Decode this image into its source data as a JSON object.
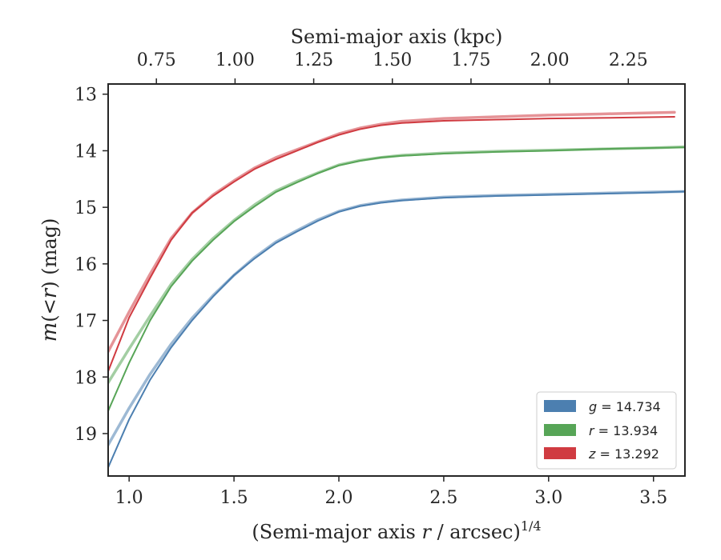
{
  "chart_data": {
    "type": "line",
    "xlabel_prefix": "(Semi-major axis ",
    "xlabel_var": "r",
    "xlabel_suffix": " / arcsec)",
    "xlabel_sup": "1/4",
    "ylabel_var": "m",
    "ylabel_mid": "(<",
    "ylabel_var2": "r",
    "ylabel_suffix": ") (mag)",
    "top_axis_label": "Semi-major axis (kpc)",
    "xlim": [
      0.9,
      3.65
    ],
    "ylim": [
      19.75,
      12.82
    ],
    "y_inverted": true,
    "x_ticks": [
      "1.0",
      "1.5",
      "2.0",
      "2.5",
      "3.0",
      "3.5"
    ],
    "y_ticks": [
      "13",
      "14",
      "15",
      "16",
      "17",
      "18",
      "19"
    ],
    "top_ticks": [
      "0.75",
      "1.00",
      "1.25",
      "1.50",
      "1.75",
      "2.00",
      "2.25"
    ],
    "legend_position": "lower right",
    "colors": {
      "g": "#4c7fb0",
      "r": "#57a557",
      "z": "#d03b41"
    },
    "series": [
      {
        "name": "g = 14.734",
        "band": "g",
        "var": "g",
        "value": "14.734",
        "color": "#4c7fb0",
        "x": [
          0.9,
          1.0,
          1.1,
          1.2,
          1.3,
          1.4,
          1.5,
          1.6,
          1.7,
          1.8,
          1.9,
          2.0,
          2.1,
          2.2,
          2.3,
          2.5,
          2.75,
          3.0,
          3.25,
          3.5,
          3.65
        ],
        "y": [
          19.6,
          18.75,
          18.05,
          17.48,
          17.0,
          16.58,
          16.2,
          15.9,
          15.63,
          15.43,
          15.24,
          15.08,
          14.98,
          14.92,
          14.88,
          14.83,
          14.8,
          14.78,
          14.76,
          14.74,
          14.72
        ],
        "y_alt": [
          19.2,
          18.55,
          17.95,
          17.42,
          16.96,
          16.56,
          16.2,
          15.88,
          15.61,
          15.41,
          15.22,
          15.07,
          14.97,
          14.91,
          14.87,
          14.82,
          14.79,
          14.77,
          14.75,
          14.73,
          14.72
        ]
      },
      {
        "name": "r = 13.934",
        "band": "r",
        "var": "r",
        "value": "13.934",
        "color": "#57a557",
        "x": [
          0.9,
          1.0,
          1.1,
          1.2,
          1.3,
          1.4,
          1.5,
          1.6,
          1.7,
          1.8,
          1.9,
          2.0,
          2.1,
          2.2,
          2.3,
          2.5,
          2.75,
          3.0,
          3.25,
          3.5,
          3.65
        ],
        "y": [
          18.6,
          17.75,
          17.0,
          16.4,
          15.95,
          15.58,
          15.25,
          14.98,
          14.73,
          14.56,
          14.4,
          14.26,
          14.18,
          14.12,
          14.09,
          14.05,
          14.02,
          14.0,
          13.97,
          13.95,
          13.94
        ],
        "y_alt": [
          18.1,
          17.5,
          16.92,
          16.36,
          15.92,
          15.55,
          15.23,
          14.95,
          14.71,
          14.54,
          14.39,
          14.25,
          14.17,
          14.12,
          14.08,
          14.04,
          14.01,
          13.99,
          13.97,
          13.95,
          13.93
        ]
      },
      {
        "name": "z = 13.292",
        "band": "z",
        "var": "z",
        "value": "13.292",
        "color": "#d03b41",
        "x": [
          0.9,
          1.0,
          1.1,
          1.2,
          1.3,
          1.4,
          1.5,
          1.6,
          1.7,
          1.8,
          1.9,
          2.0,
          2.1,
          2.2,
          2.3,
          2.5,
          2.75,
          3.0,
          3.25,
          3.6
        ],
        "y": [
          17.9,
          16.95,
          16.25,
          15.58,
          15.1,
          14.8,
          14.55,
          14.32,
          14.15,
          14.0,
          13.85,
          13.72,
          13.62,
          13.55,
          13.51,
          13.47,
          13.45,
          13.43,
          13.42,
          13.4
        ],
        "y_alt": [
          17.55,
          16.85,
          16.18,
          15.55,
          15.1,
          14.78,
          14.53,
          14.3,
          14.12,
          13.98,
          13.84,
          13.7,
          13.6,
          13.53,
          13.48,
          13.43,
          13.4,
          13.37,
          13.35,
          13.32
        ]
      }
    ]
  }
}
